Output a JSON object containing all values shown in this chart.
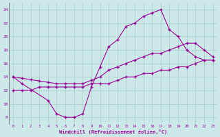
{
  "line1_x": [
    0,
    1,
    4,
    5,
    6,
    7,
    8,
    9,
    10,
    11,
    12,
    13,
    14,
    15,
    16,
    17,
    18,
    19,
    20,
    21,
    22,
    23
  ],
  "line1_y": [
    14,
    13,
    10.5,
    8.5,
    8.0,
    8.0,
    8.5,
    12.5,
    15.5,
    18.5,
    19.5,
    21.5,
    22.0,
    23.0,
    23.5,
    24.0,
    21.0,
    20.0,
    18.0,
    17.0,
    16.5,
    16.5
  ],
  "line2_x": [
    0,
    1,
    2,
    3,
    4,
    5,
    6,
    7,
    8,
    9,
    10,
    11,
    12,
    13,
    14,
    15,
    16,
    17,
    18,
    19,
    20,
    21,
    22,
    23
  ],
  "line2_y": [
    14.0,
    13.8,
    13.6,
    13.4,
    13.2,
    13.0,
    13.0,
    13.0,
    13.0,
    13.5,
    14.0,
    15.0,
    15.5,
    16.0,
    16.5,
    17.0,
    17.5,
    17.5,
    18.0,
    18.5,
    19.0,
    19.0,
    18.0,
    17.0
  ],
  "line3_x": [
    0,
    1,
    2,
    3,
    4,
    5,
    6,
    7,
    8,
    9,
    10,
    11,
    12,
    13,
    14,
    15,
    16,
    17,
    18,
    19,
    20,
    21,
    22,
    23
  ],
  "line3_y": [
    12.0,
    12.0,
    12.0,
    12.5,
    12.5,
    12.5,
    12.5,
    12.5,
    12.5,
    13.0,
    13.0,
    13.0,
    13.5,
    14.0,
    14.0,
    14.5,
    14.5,
    15.0,
    15.0,
    15.5,
    15.5,
    16.0,
    16.5,
    16.5
  ],
  "color": "#990099",
  "bg_color": "#cce8e8",
  "grid_color": "#aacccc",
  "xlabel": "Windchill (Refroidissement éolien,°C)",
  "xlim": [
    -0.5,
    23.5
  ],
  "ylim": [
    7,
    25
  ],
  "xticks": [
    0,
    1,
    2,
    3,
    4,
    5,
    6,
    7,
    8,
    9,
    10,
    11,
    12,
    13,
    14,
    15,
    16,
    17,
    18,
    19,
    20,
    21,
    22,
    23
  ],
  "yticks": [
    8,
    10,
    12,
    14,
    16,
    18,
    20,
    22,
    24
  ]
}
